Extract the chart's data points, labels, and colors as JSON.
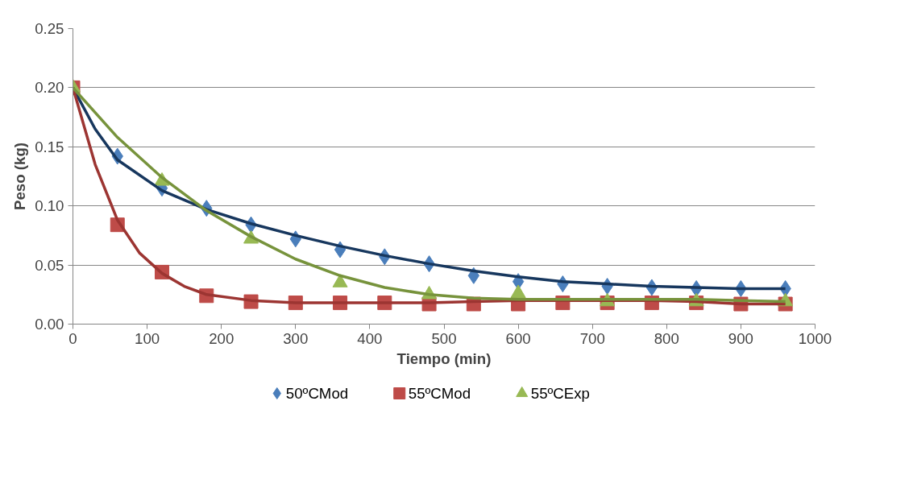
{
  "chart_data": {
    "type": "scatter",
    "xlabel": "Tiempo (min)",
    "ylabel": "Peso (kg)",
    "xlim": [
      0,
      1000
    ],
    "xticks": [
      0,
      100,
      200,
      300,
      400,
      500,
      600,
      700,
      800,
      900,
      1000
    ],
    "ylim": [
      0,
      0.25
    ],
    "yticks": [
      {
        "value": 0,
        "label": "0.00"
      },
      {
        "value": 0.05,
        "label": "0.05"
      },
      {
        "value": 0.1,
        "label": "0.10"
      },
      {
        "value": 0.15,
        "label": "0.15"
      },
      {
        "value": 0.2,
        "label": "0.20"
      },
      {
        "value": 0.25,
        "label": "0.25"
      }
    ],
    "grid": "y",
    "legend": "bottom",
    "series": [
      {
        "name": "50ºCMod",
        "color": "#4a7ebb",
        "marker": "diamond",
        "x": [
          60,
          120,
          180,
          240,
          300,
          360,
          420,
          480,
          540,
          600,
          660,
          720,
          780,
          840,
          900,
          960
        ],
        "values": [
          0.142,
          0.115,
          0.098,
          0.084,
          0.072,
          0.063,
          0.057,
          0.051,
          0.041,
          0.036,
          0.034,
          0.032,
          0.031,
          0.03,
          0.03,
          0.03
        ]
      },
      {
        "name": "55ºCMod",
        "color": "#be4b48",
        "marker": "square",
        "x": [
          0,
          60,
          120,
          180,
          240,
          300,
          360,
          420,
          480,
          540,
          600,
          660,
          720,
          780,
          840,
          900,
          960
        ],
        "values": [
          0.2,
          0.084,
          0.044,
          0.024,
          0.019,
          0.018,
          0.018,
          0.018,
          0.017,
          0.017,
          0.017,
          0.018,
          0.018,
          0.018,
          0.018,
          0.017,
          0.017
        ]
      },
      {
        "name": "55ºCExp",
        "color": "#98b954",
        "marker": "triangle",
        "x": [
          0,
          120,
          240,
          360,
          480,
          600,
          720,
          840,
          960
        ],
        "values": [
          0.2,
          0.121,
          0.072,
          0.035,
          0.025,
          0.026,
          0.019,
          0.019,
          0.019
        ]
      },
      {
        "type": "line",
        "color": "#17375e",
        "x": [
          0,
          30,
          60,
          120,
          180,
          240,
          300,
          360,
          420,
          480,
          540,
          600,
          660,
          720,
          780,
          840,
          900,
          960
        ],
        "values": [
          0.2,
          0.165,
          0.139,
          0.113,
          0.097,
          0.085,
          0.075,
          0.066,
          0.058,
          0.051,
          0.045,
          0.04,
          0.036,
          0.034,
          0.032,
          0.031,
          0.03,
          0.03
        ]
      },
      {
        "type": "line",
        "color": "#9c3532",
        "x": [
          0,
          30,
          60,
          90,
          120,
          150,
          180,
          240,
          300,
          360,
          420,
          480,
          540,
          600,
          660,
          720,
          780,
          840,
          900,
          960
        ],
        "values": [
          0.2,
          0.135,
          0.088,
          0.06,
          0.043,
          0.032,
          0.025,
          0.02,
          0.018,
          0.018,
          0.018,
          0.018,
          0.019,
          0.02,
          0.02,
          0.02,
          0.02,
          0.019,
          0.017,
          0.017
        ]
      },
      {
        "type": "line",
        "color": "#77933c",
        "x": [
          0,
          60,
          120,
          180,
          240,
          300,
          360,
          420,
          480,
          540,
          600,
          660,
          720,
          780,
          840,
          900,
          960
        ],
        "values": [
          0.2,
          0.158,
          0.124,
          0.096,
          0.074,
          0.055,
          0.041,
          0.031,
          0.025,
          0.022,
          0.021,
          0.021,
          0.021,
          0.021,
          0.021,
          0.02,
          0.019
        ]
      }
    ]
  }
}
